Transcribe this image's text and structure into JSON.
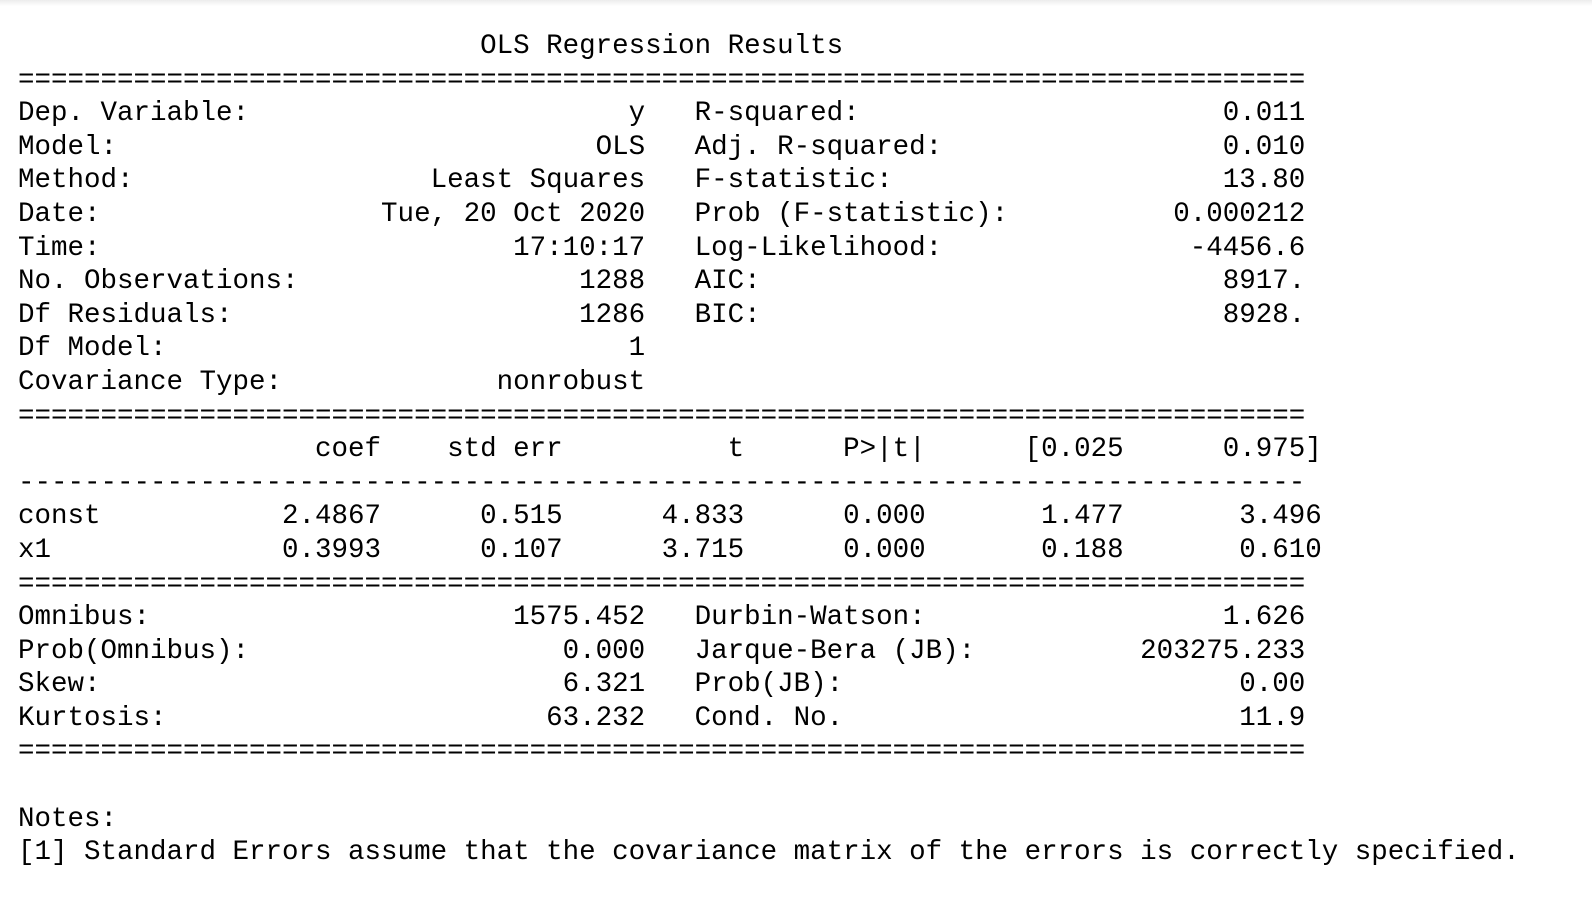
{
  "title": "OLS Regression Results",
  "separators": {
    "double": "==============================================================================",
    "single": "------------------------------------------------------------------------------"
  },
  "summary": {
    "rows": [
      {
        "left_label": "Dep. Variable:",
        "left_value": "y",
        "right_label": "R-squared:",
        "right_value": "0.011"
      },
      {
        "left_label": "Model:",
        "left_value": "OLS",
        "right_label": "Adj. R-squared:",
        "right_value": "0.010"
      },
      {
        "left_label": "Method:",
        "left_value": "Least Squares",
        "right_label": "F-statistic:",
        "right_value": "13.80"
      },
      {
        "left_label": "Date:",
        "left_value": "Tue, 20 Oct 2020",
        "right_label": "Prob (F-statistic):",
        "right_value": "0.000212"
      },
      {
        "left_label": "Time:",
        "left_value": "17:10:17",
        "right_label": "Log-Likelihood:",
        "right_value": "-4456.6"
      },
      {
        "left_label": "No. Observations:",
        "left_value": "1288",
        "right_label": "AIC:",
        "right_value": "8917."
      },
      {
        "left_label": "Df Residuals:",
        "left_value": "1286",
        "right_label": "BIC:",
        "right_value": "8928."
      },
      {
        "left_label": "Df Model:",
        "left_value": "1",
        "right_label": "",
        "right_value": ""
      },
      {
        "left_label": "Covariance Type:",
        "left_value": "nonrobust",
        "right_label": "",
        "right_value": ""
      }
    ]
  },
  "coefficients": {
    "headers": [
      "",
      "coef",
      "std err",
      "t",
      "P>|t|",
      "[0.025",
      "0.975]"
    ],
    "rows": [
      [
        "const",
        "2.4867",
        "0.515",
        "4.833",
        "0.000",
        "1.477",
        "3.496"
      ],
      [
        "x1",
        "0.3993",
        "0.107",
        "3.715",
        "0.000",
        "0.188",
        "0.610"
      ]
    ]
  },
  "diagnostics": {
    "rows": [
      {
        "left_label": "Omnibus:",
        "left_value": "1575.452",
        "right_label": "Durbin-Watson:",
        "right_value": "1.626"
      },
      {
        "left_label": "Prob(Omnibus):",
        "left_value": "0.000",
        "right_label": "Jarque-Bera (JB):",
        "right_value": "203275.233"
      },
      {
        "left_label": "Skew:",
        "left_value": "6.321",
        "right_label": "Prob(JB):",
        "right_value": "0.00"
      },
      {
        "left_label": "Kurtosis:",
        "left_value": "63.232",
        "right_label": "Cond. No.",
        "right_value": "11.9"
      }
    ]
  },
  "notes": {
    "heading": "Notes:",
    "items": [
      "[1] Standard Errors assume that the covariance matrix of the errors is correctly specified."
    ]
  }
}
